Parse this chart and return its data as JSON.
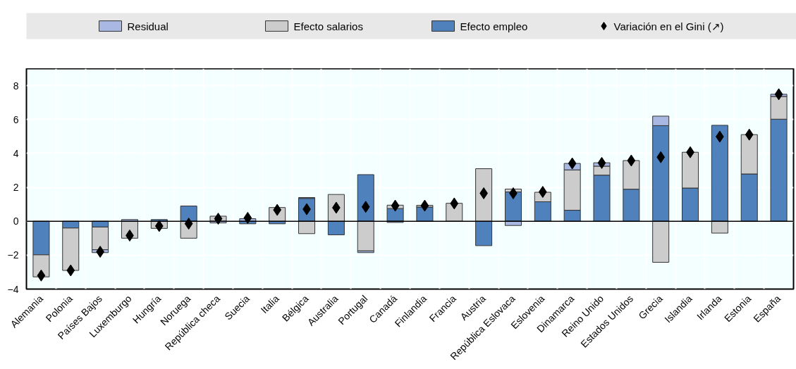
{
  "chart_data": {
    "type": "bar",
    "stacked": true,
    "categories": [
      "Alemania",
      "Polonia",
      "Países Bajos",
      "Luxemburgo",
      "Hungría",
      "Noruega",
      "República checa",
      "Suecia",
      "Italia",
      "Bélgica",
      "Australia",
      "Portugal",
      "Canadá",
      "Finlandia",
      "Francia",
      "Austria",
      "República Eslovaca",
      "Eslovenia",
      "Dinamarca",
      "Reino Unido",
      "Estados Unidos",
      "Grecia",
      "Islandia",
      "Irlanda",
      "Estonia",
      "España"
    ],
    "series": [
      {
        "name": "Efecto empleo",
        "color": "#4f81bd",
        "values": [
          -1.98,
          -0.4,
          -0.34,
          null,
          0.1,
          0.9,
          null,
          -0.15,
          -0.15,
          1.35,
          -0.8,
          2.75,
          0.75,
          0.84,
          null,
          -1.44,
          1.73,
          1.15,
          0.65,
          2.72,
          1.89,
          5.64,
          1.96,
          5.66,
          2.79,
          6.02
        ]
      },
      {
        "name": "Efecto salarios",
        "color": "#cccccc",
        "values": [
          -1.3,
          -2.5,
          -1.34,
          -1.0,
          -0.42,
          -1.0,
          0.3,
          null,
          0.81,
          -0.73,
          1.58,
          -1.75,
          0.2,
          0.1,
          1.06,
          3.1,
          0.17,
          0.56,
          2.38,
          0.53,
          1.69,
          -2.42,
          2.11,
          -0.7,
          2.32,
          1.34
        ]
      },
      {
        "name": "Residual",
        "color": "#a9b8e3",
        "values": [
          null,
          null,
          -0.17,
          0.1,
          null,
          null,
          -0.1,
          0.15,
          null,
          0.05,
          null,
          -0.1,
          -0.07,
          null,
          null,
          null,
          -0.25,
          null,
          0.38,
          0.2,
          null,
          0.56,
          null,
          null,
          null,
          0.13
        ]
      },
      {
        "name": "Variación en el Gini (↗)",
        "type": "scatter",
        "marker": "diamond",
        "color": "#000000",
        "values": [
          -3.2,
          -2.9,
          -1.8,
          -0.84,
          -0.28,
          -0.14,
          0.15,
          0.2,
          0.67,
          0.71,
          0.8,
          0.85,
          0.92,
          0.92,
          1.05,
          1.65,
          1.65,
          1.73,
          3.41,
          3.44,
          3.58,
          3.78,
          4.07,
          4.99,
          5.11,
          7.49
        ]
      }
    ],
    "ylim": [
      -4,
      9
    ],
    "yticks": [
      -4,
      -2,
      0,
      2,
      4,
      6,
      8
    ],
    "ref_lines": [
      {
        "axis": "y",
        "value": 0,
        "color": "#000000"
      }
    ],
    "grid": true,
    "legend": "top"
  }
}
